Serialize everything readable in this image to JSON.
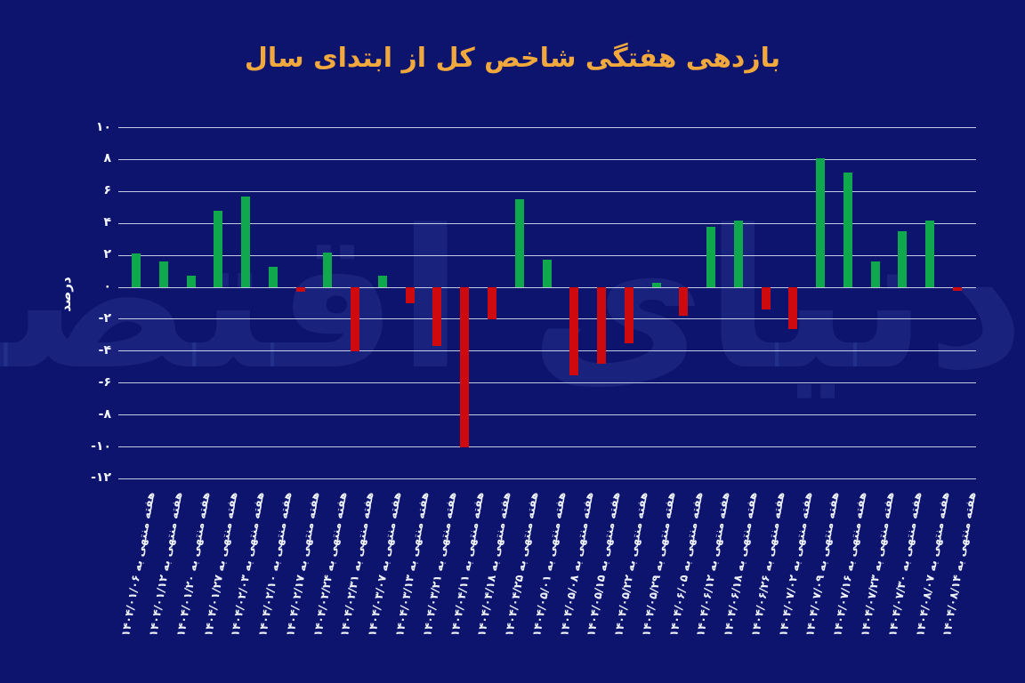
{
  "title": "بازدهی هفتگی شاخص کل از ابتدای سال",
  "watermark_text": "دنیای اقتصاد",
  "y_axis": {
    "label": "درصد",
    "ticks": [
      {
        "label": "۱۰",
        "value": 10
      },
      {
        "label": "۸",
        "value": 8
      },
      {
        "label": "۶",
        "value": 6
      },
      {
        "label": "۴",
        "value": 4
      },
      {
        "label": "۲",
        "value": 2
      },
      {
        "label": "۰",
        "value": 0
      },
      {
        "label": "-۲",
        "value": -2
      },
      {
        "label": "-۴",
        "value": -4
      },
      {
        "label": "-۶",
        "value": -6
      },
      {
        "label": "-۸",
        "value": -8
      },
      {
        "label": "-۱۰",
        "value": -10
      },
      {
        "label": "-۱۲",
        "value": -12
      }
    ]
  },
  "chart_data": {
    "type": "bar",
    "title": "بازدهی هفتگی شاخص کل از ابتدای سال",
    "xlabel": "",
    "ylabel": "درصد",
    "ylim": [
      -12,
      10
    ],
    "grid": true,
    "legend": "none",
    "categories": [
      "هفته منتهی به ۱۴۰۴/۰۱/۰۶",
      "هفته منتهی به ۱۴۰۴/۰۱/۱۲",
      "هفته منتهی به ۱۴۰۴/۰۱/۲۰",
      "هفته منتهی به ۱۴۰۴/۰۱/۲۷",
      "هفته منتهی به ۱۴۰۴/۰۲/۰۳",
      "هفته منتهی به ۱۴۰۴/۰۲/۱۰",
      "هفته منتهی به ۱۴۰۴/۰۲/۱۷",
      "هفته منتهی به ۱۴۰۴/۰۲/۲۴",
      "هفته منتهی به ۱۴۰۴/۰۲/۳۱",
      "هفته منتهی به ۱۴۰۴/۰۳/۰۷",
      "هفته منتهی به ۱۴۰۴/۰۳/۱۳",
      "هفته منتهی به ۱۴۰۴/۰۳/۲۱",
      "هفته منتهی به ۱۴۰۴/۰۴/۱۱",
      "هفته منتهی به ۱۴۰۴/۰۴/۱۸",
      "هفته منتهی به ۱۴۰۴/۰۴/۲۵",
      "هفته منتهی به ۱۴۰۴/۰۵/۰۱",
      "هفته منتهی به ۱۴۰۴/۰۵/۰۸",
      "هفته منتهی به ۱۴۰۴/۰۵/۱۵",
      "هفته منتهی به ۱۴۰۴/۰۵/۲۲",
      "هفته منتهی به ۱۴۰۴/۰۵/۲۹",
      "هفته منتهی به ۱۴۰۴/۰۶/۰۵",
      "هفته منتهی به ۱۴۰۴/۰۶/۱۲",
      "هفته منتهی به ۱۴۰۴/۰۶/۱۸",
      "هفته منتهی به ۱۴۰۴/۰۶/۲۶",
      "هفته منتهی به ۱۴۰۴/۰۷/۰۲",
      "هفته منتهی به ۱۴۰۴/۰۷/۰۹",
      "هفته منتهی به ۱۴۰۴/۰۷/۱۶",
      "هفته منتهی به ۱۴۰۴/۰۷/۲۳",
      "هفته منتهی به ۱۴۰۴/۰۷/۳۰",
      "هفته منتهی به ۱۴۰۴/۰۸/۰۷",
      "هفته منتهی به ۱۴۰۴/۰۸/۱۴"
    ],
    "values": [
      2.1,
      1.6,
      0.7,
      4.8,
      5.7,
      1.3,
      -0.3,
      2.2,
      -4.0,
      0.7,
      -1.0,
      -3.7,
      -10.0,
      -2.0,
      5.5,
      1.7,
      -5.5,
      -4.8,
      -3.5,
      0.3,
      -1.8,
      3.8,
      4.2,
      -1.4,
      -2.6,
      8.1,
      7.2,
      1.6,
      3.5,
      4.2,
      -0.2
    ],
    "positive_color": "#10a84d",
    "negative_color": "#cf0a0e"
  },
  "colors": {
    "background": "#0d146e",
    "title": "#f1a83d",
    "axis_text": "#f3f6ff",
    "gridline": "#e4eafa"
  }
}
